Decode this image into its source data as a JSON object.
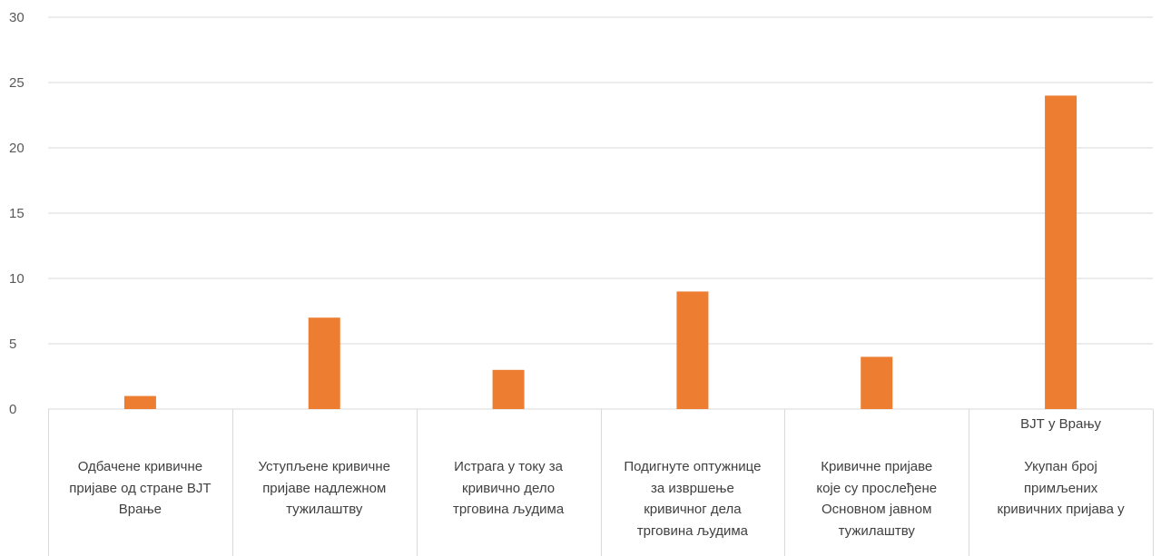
{
  "chart_data": {
    "type": "bar",
    "ylim": [
      0,
      30
    ],
    "yticks": [
      "0",
      "5",
      "10",
      "15",
      "20",
      "25",
      "30"
    ],
    "grid": true,
    "bar_color": "#ED7D31",
    "categories": [
      "Одбачене кривичне пријаве од стране ВЈТ Врање",
      "Уступљене кривичне пријаве надлежном тужилаштву",
      "Истрага у току за кривично дело трговина људима",
      "Подигнуте оптужнице за извршење кривичног дела трговина људима",
      "Кривичне пријаве које су прослеђене Основном јавном тужилаштву",
      "Укупан број примљених кривичних пријава у ВЈТ у Врању"
    ],
    "category_lines": [
      [
        "",
        "",
        "Одбачене кривичне",
        "пријаве од стране ВЈТ",
        "Врање"
      ],
      [
        "",
        "",
        "Уступљене кривичне",
        "пријаве надлежном",
        "тужилаштву"
      ],
      [
        "",
        "",
        "Истрага у току за",
        "кривично дело",
        "трговина људима"
      ],
      [
        "",
        "",
        "Подигнуте оптужнице",
        "за извршење",
        "кривичног дела",
        "трговина људима"
      ],
      [
        "",
        "",
        "Кривичне пријаве",
        "које су прослеђене",
        "Основном јавном",
        "тужилаштву"
      ],
      [
        "ВЈТ у Врању",
        "",
        "Укупан број",
        "примљених",
        "кривичних пријава у"
      ]
    ],
    "values": [
      1,
      7,
      3,
      9,
      4,
      24
    ]
  }
}
